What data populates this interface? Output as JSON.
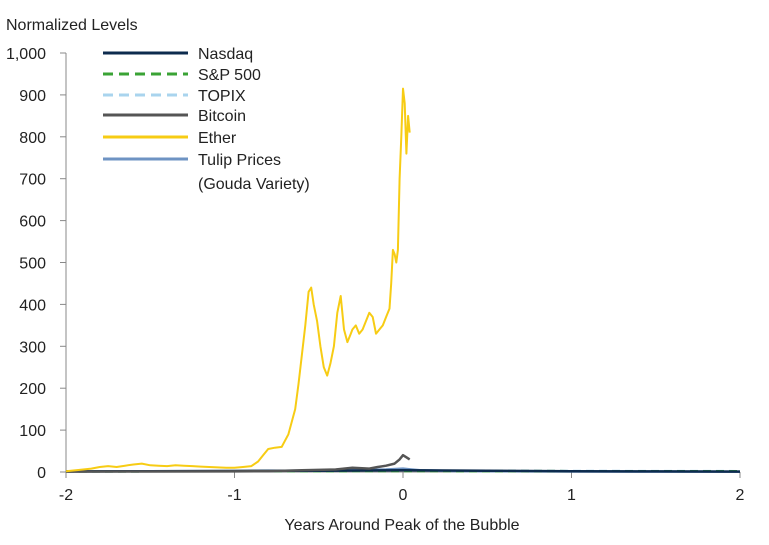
{
  "chart_data": {
    "type": "line",
    "title": "",
    "ylabel": "Normalized Levels",
    "xlabel": "Years Around Peak of the Bubble",
    "xlim": [
      -2,
      2
    ],
    "ylim": [
      0,
      1000
    ],
    "x_ticks": [
      -2,
      -1,
      0,
      1,
      2
    ],
    "x_tick_labels": [
      "-2",
      "-1",
      "0",
      "1",
      "2"
    ],
    "y_ticks": [
      0,
      100,
      200,
      300,
      400,
      500,
      600,
      700,
      800,
      900,
      1000
    ],
    "y_tick_labels": [
      "0",
      "100",
      "200",
      "300",
      "400",
      "500",
      "600",
      "700",
      "800",
      "900",
      "1,000"
    ],
    "legend_position": "top-left",
    "series": [
      {
        "name": "Nasdaq",
        "color": "#0d2b4e",
        "dash": "solid",
        "x": [
          -2,
          -1.5,
          -1,
          -0.5,
          0,
          0.5,
          1,
          1.5,
          2
        ],
        "y": [
          1.5,
          2,
          2.5,
          3,
          4,
          3,
          2,
          1.5,
          1
        ]
      },
      {
        "name": "S&P 500",
        "color": "#3aa335",
        "dash": "dashed",
        "x": [
          -2,
          -1,
          0,
          1,
          2
        ],
        "y": [
          1.5,
          2,
          2.5,
          2,
          1.8
        ]
      },
      {
        "name": "TOPIX",
        "color": "#a9d4ee",
        "dash": "dashed",
        "x": [
          -2,
          -1,
          0,
          1,
          2
        ],
        "y": [
          1.5,
          2,
          3,
          2.5,
          2
        ]
      },
      {
        "name": "Bitcoin",
        "color": "#555555",
        "dash": "solid",
        "x": [
          -2,
          -1.5,
          -1,
          -0.8,
          -0.6,
          -0.4,
          -0.3,
          -0.2,
          -0.15,
          -0.1,
          -0.05,
          -0.02,
          0,
          0.02,
          0.04
        ],
        "y": [
          1,
          1.2,
          1.5,
          2,
          4,
          6,
          10,
          8,
          12,
          15,
          20,
          30,
          40,
          35,
          30
        ]
      },
      {
        "name": "Ether",
        "color": "#f7cc14",
        "dash": "solid",
        "x": [
          -2,
          -1.92,
          -1.85,
          -1.8,
          -1.75,
          -1.7,
          -1.65,
          -1.6,
          -1.55,
          -1.5,
          -1.45,
          -1.4,
          -1.35,
          -1.3,
          -1.25,
          -1.2,
          -1.15,
          -1.1,
          -1.05,
          -1.0,
          -0.95,
          -0.9,
          -0.86,
          -0.83,
          -0.8,
          -0.76,
          -0.72,
          -0.68,
          -0.64,
          -0.62,
          -0.6,
          -0.58,
          -0.56,
          -0.545,
          -0.53,
          -0.51,
          -0.49,
          -0.47,
          -0.45,
          -0.43,
          -0.41,
          -0.39,
          -0.37,
          -0.35,
          -0.33,
          -0.31,
          -0.3,
          -0.28,
          -0.26,
          -0.24,
          -0.22,
          -0.2,
          -0.18,
          -0.16,
          -0.14,
          -0.12,
          -0.1,
          -0.08,
          -0.07,
          -0.06,
          -0.05,
          -0.04,
          -0.03,
          -0.02,
          -0.01,
          0,
          0.01,
          0.02,
          0.03,
          0.04
        ],
        "y": [
          2,
          5,
          8,
          12,
          14,
          12,
          15,
          18,
          20,
          16,
          15,
          14,
          16,
          15,
          14,
          13,
          12,
          11,
          10,
          10,
          12,
          14,
          25,
          40,
          55,
          58,
          60,
          90,
          150,
          210,
          280,
          350,
          430,
          440,
          400,
          360,
          300,
          250,
          230,
          260,
          300,
          380,
          420,
          340,
          310,
          330,
          340,
          350,
          330,
          340,
          360,
          380,
          370,
          330,
          340,
          350,
          370,
          390,
          450,
          530,
          520,
          500,
          530,
          700,
          800,
          915,
          880,
          760,
          850,
          810
        ]
      },
      {
        "name": "Tulip Prices\n(Gouda Variety)",
        "label_line1": "Tulip Prices",
        "label_line2": "(Gouda Variety)",
        "color": "#6e93c3",
        "dash": "solid",
        "x": [
          -2,
          -1.5,
          -1,
          -0.5,
          -0.2,
          -0.1,
          0,
          0.05,
          0.1,
          0.3,
          0.6,
          1,
          1.5,
          2
        ],
        "y": [
          1.5,
          1.8,
          2.5,
          3.5,
          5,
          6,
          8,
          6,
          4,
          2.5,
          1.8,
          1.2,
          1,
          1
        ]
      }
    ]
  }
}
